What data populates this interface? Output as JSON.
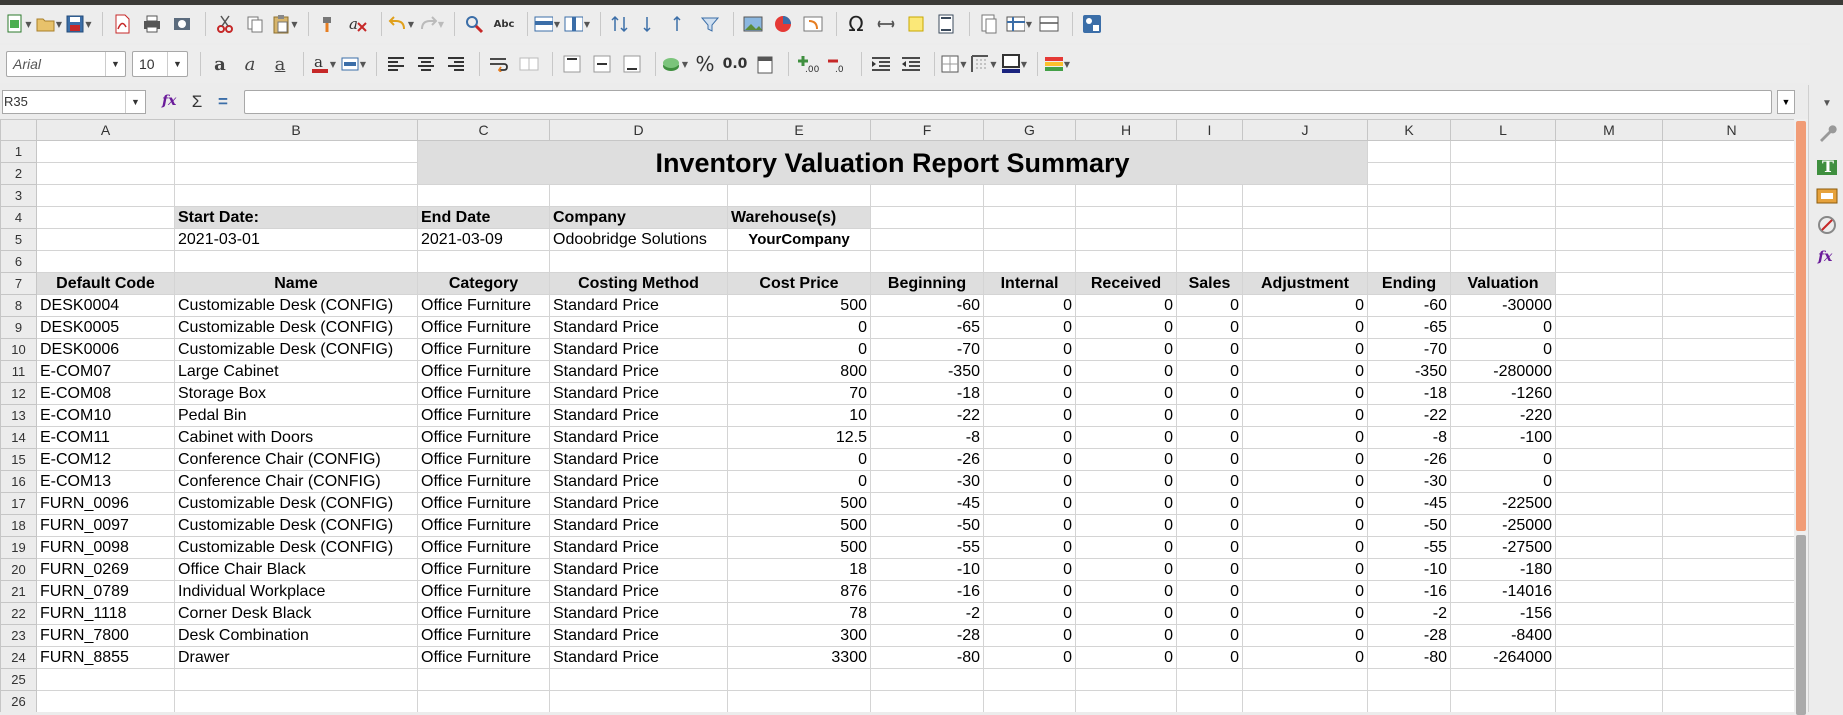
{
  "font": {
    "name": "Arial",
    "size": "10"
  },
  "name_box": "R35",
  "formula": "",
  "columns": [
    "A",
    "B",
    "C",
    "D",
    "E",
    "F",
    "G",
    "H",
    "I",
    "J",
    "K",
    "L",
    "M",
    "N"
  ],
  "report": {
    "title": "Inventory Valuation Report Summary",
    "start_date_label": "Start Date:",
    "end_date_label": "End Date",
    "company_label": "Company",
    "warehouse_label": "Warehouse(s)",
    "start_date": "2021-03-01",
    "end_date": "2021-03-09",
    "company": "Odoobridge Solutions",
    "warehouse": "YourCompany"
  },
  "table": {
    "headers": [
      "Default Code",
      "Name",
      "Category",
      "Costing Method",
      "Cost Price",
      "Beginning",
      "Internal",
      "Received",
      "Sales",
      "Adjustment",
      "Ending",
      "Valuation"
    ],
    "rows": [
      [
        "DESK0004",
        "Customizable Desk (CONFIG)",
        "Office Furniture",
        "Standard Price",
        "500",
        "-60",
        "0",
        "0",
        "0",
        "0",
        "-60",
        "-30000"
      ],
      [
        "DESK0005",
        "Customizable Desk (CONFIG)",
        "Office Furniture",
        "Standard Price",
        "0",
        "-65",
        "0",
        "0",
        "0",
        "0",
        "-65",
        "0"
      ],
      [
        "DESK0006",
        "Customizable Desk (CONFIG)",
        "Office Furniture",
        "Standard Price",
        "0",
        "-70",
        "0",
        "0",
        "0",
        "0",
        "-70",
        "0"
      ],
      [
        "E-COM07",
        "Large Cabinet",
        "Office Furniture",
        "Standard Price",
        "800",
        "-350",
        "0",
        "0",
        "0",
        "0",
        "-350",
        "-280000"
      ],
      [
        "E-COM08",
        "Storage Box",
        "Office Furniture",
        "Standard Price",
        "70",
        "-18",
        "0",
        "0",
        "0",
        "0",
        "-18",
        "-1260"
      ],
      [
        "E-COM10",
        "Pedal Bin",
        "Office Furniture",
        "Standard Price",
        "10",
        "-22",
        "0",
        "0",
        "0",
        "0",
        "-22",
        "-220"
      ],
      [
        "E-COM11",
        "Cabinet with Doors",
        "Office Furniture",
        "Standard Price",
        "12.5",
        "-8",
        "0",
        "0",
        "0",
        "0",
        "-8",
        "-100"
      ],
      [
        "E-COM12",
        "Conference Chair (CONFIG)",
        "Office Furniture",
        "Standard Price",
        "0",
        "-26",
        "0",
        "0",
        "0",
        "0",
        "-26",
        "0"
      ],
      [
        "E-COM13",
        "Conference Chair (CONFIG)",
        "Office Furniture",
        "Standard Price",
        "0",
        "-30",
        "0",
        "0",
        "0",
        "0",
        "-30",
        "0"
      ],
      [
        "FURN_0096",
        "Customizable Desk (CONFIG)",
        "Office Furniture",
        "Standard Price",
        "500",
        "-45",
        "0",
        "0",
        "0",
        "0",
        "-45",
        "-22500"
      ],
      [
        "FURN_0097",
        "Customizable Desk (CONFIG)",
        "Office Furniture",
        "Standard Price",
        "500",
        "-50",
        "0",
        "0",
        "0",
        "0",
        "-50",
        "-25000"
      ],
      [
        "FURN_0098",
        "Customizable Desk (CONFIG)",
        "Office Furniture",
        "Standard Price",
        "500",
        "-55",
        "0",
        "0",
        "0",
        "0",
        "-55",
        "-27500"
      ],
      [
        "FURN_0269",
        "Office Chair Black",
        "Office Furniture",
        "Standard Price",
        "18",
        "-10",
        "0",
        "0",
        "0",
        "0",
        "-10",
        "-180"
      ],
      [
        "FURN_0789",
        "Individual Workplace",
        "Office Furniture",
        "Standard Price",
        "876",
        "-16",
        "0",
        "0",
        "0",
        "0",
        "-16",
        "-14016"
      ],
      [
        "FURN_1118",
        "Corner Desk Black",
        "Office Furniture",
        "Standard Price",
        "78",
        "-2",
        "0",
        "0",
        "0",
        "0",
        "-2",
        "-156"
      ],
      [
        "FURN_7800",
        "Desk Combination",
        "Office Furniture",
        "Standard Price",
        "300",
        "-28",
        "0",
        "0",
        "0",
        "0",
        "-28",
        "-8400"
      ],
      [
        "FURN_8855",
        "Drawer",
        "Office Furniture",
        "Standard Price",
        "3300",
        "-80",
        "0",
        "0",
        "0",
        "0",
        "-80",
        "-264000"
      ]
    ]
  },
  "row_numbers": [
    "1",
    "2",
    "3",
    "4",
    "5",
    "6",
    "7",
    "8",
    "9",
    "10",
    "11",
    "12",
    "13",
    "14",
    "15",
    "16",
    "17",
    "18",
    "19",
    "20",
    "21",
    "22",
    "23",
    "24",
    "25",
    "26"
  ],
  "toolbar1": [
    "new-icon",
    "open-icon",
    "save-icon",
    "export-pdf-icon",
    "print-icon",
    "print-preview-icon",
    "cut-icon",
    "copy-icon",
    "paste-icon",
    "clone-formatting-icon",
    "clear-formatting-icon",
    "undo-icon",
    "redo-icon",
    "find-replace-icon",
    "spelling-icon",
    "row-icon",
    "column-icon",
    "sort-icon",
    "sort-ascending-icon",
    "sort-descending-icon",
    "autofilter-icon",
    "image-icon",
    "chart-icon",
    "pivot-table-icon",
    "special-character-icon",
    "hyperlink-icon",
    "comment-icon",
    "headers-footers-icon",
    "define-print-area-icon",
    "freeze-rows-columns-icon",
    "split-window-icon",
    "show-draw-functions-icon"
  ],
  "toolbar2": [
    "bold-icon",
    "italic-icon",
    "underline-icon",
    "font-color-icon",
    "highlight-icon",
    "align-left-icon",
    "align-center-icon",
    "align-right-icon",
    "wrap-text-icon",
    "merge-center-icon",
    "align-top-icon",
    "center-vertically-icon",
    "align-bottom-icon",
    "currency-icon",
    "percent-icon",
    "number-format-icon",
    "date-icon",
    "add-decimal-icon",
    "delete-decimal-icon",
    "increase-indent-icon",
    "decrease-indent-icon",
    "borders-icon",
    "border-style-icon",
    "border-color-icon",
    "conditional-icon"
  ],
  "percent_glyph": "%",
  "number_glyph": "0.0",
  "special_char_glyph": "Ω",
  "abc_glyph": "Abc",
  "sidebar": [
    "properties-icon",
    "styles-icon",
    "gallery-icon",
    "navigator-icon",
    "functions-icon",
    "sidebar-menu-icon"
  ]
}
